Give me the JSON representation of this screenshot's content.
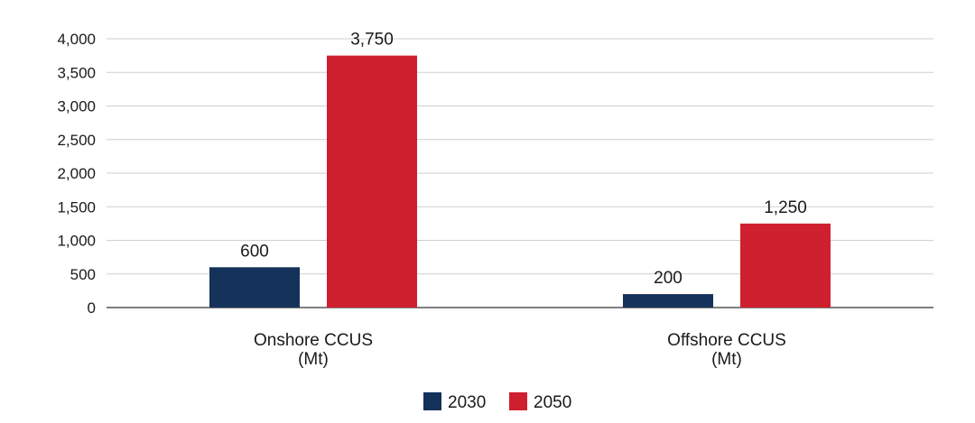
{
  "chart_data": {
    "type": "bar",
    "categories": [
      [
        "Onshore CCUS",
        "(Mt)"
      ],
      [
        "Offshore CCUS",
        "(Mt)"
      ]
    ],
    "series": [
      {
        "name": "2030",
        "color": "#14325a",
        "values": [
          600,
          200
        ],
        "labels": [
          "600",
          "200"
        ]
      },
      {
        "name": "2050",
        "color": "#cf202f",
        "values": [
          3750,
          1250
        ],
        "labels": [
          "3,750",
          "1,250"
        ]
      }
    ],
    "yticks": [
      0,
      500,
      1000,
      1500,
      2000,
      2500,
      3000,
      3500,
      4000
    ],
    "ytick_labels": [
      "0",
      "500",
      "1,000",
      "1,500",
      "2,000",
      "2,500",
      "3,000",
      "3,500",
      "4,000"
    ],
    "ylim": [
      0,
      4000
    ],
    "grid": true,
    "legend": "bottom-center"
  }
}
